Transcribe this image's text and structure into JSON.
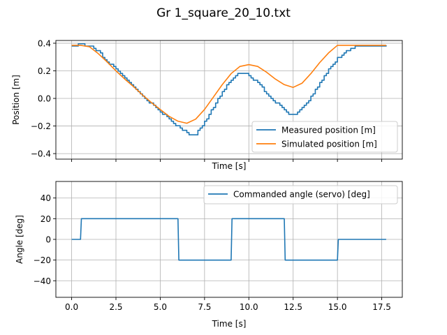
{
  "figure": {
    "title": "Gr 1_square_20_10.txt"
  },
  "chart_data": [
    {
      "type": "line",
      "xlabel": "Time [s]",
      "ylabel": "Position [m]",
      "xlim": [
        -0.89,
        18.66
      ],
      "ylim": [
        -0.44,
        0.42
      ],
      "xticks": [
        0,
        2.5,
        5,
        7.5,
        10,
        12.5,
        15,
        17.5
      ],
      "yticks": [
        -0.4,
        -0.2,
        0.0,
        0.2,
        0.4
      ],
      "ytick_labels": [
        "−0.4",
        "−0.2",
        "0.0",
        "0.2",
        "0.4"
      ],
      "show_xtick_labels": false,
      "grid": true,
      "legend_position": "bottom-right",
      "series": [
        {
          "name": "Measured position [m]",
          "color": "#1f77b4",
          "step": true,
          "step_size": 0.0165,
          "x": [
            0.0,
            0.5,
            1.0,
            1.5,
            2.0,
            2.5,
            3.0,
            3.5,
            4.0,
            4.5,
            5.0,
            5.5,
            6.0,
            6.5,
            6.75,
            7.0,
            7.5,
            8.0,
            8.5,
            9.0,
            9.5,
            9.75,
            10.0,
            10.5,
            11.0,
            11.5,
            12.0,
            12.25,
            12.5,
            12.75,
            13.0,
            13.5,
            14.0,
            14.5,
            15.0,
            15.5,
            16.0,
            16.5,
            17.0,
            17.75
          ],
          "y": [
            0.385,
            0.39,
            0.385,
            0.34,
            0.27,
            0.21,
            0.145,
            0.08,
            0.02,
            -0.04,
            -0.095,
            -0.15,
            -0.205,
            -0.25,
            -0.27,
            -0.26,
            -0.17,
            -0.06,
            0.05,
            0.14,
            0.185,
            0.185,
            0.165,
            0.11,
            0.04,
            -0.025,
            -0.08,
            -0.11,
            -0.115,
            -0.1,
            -0.07,
            0.01,
            0.11,
            0.21,
            0.29,
            0.345,
            0.375,
            0.385,
            0.385,
            0.385
          ]
        },
        {
          "name": "Simulated position [m]",
          "color": "#ff7f0e",
          "step": false,
          "x": [
            0.0,
            0.5,
            1.0,
            1.5,
            2.0,
            2.5,
            3.0,
            3.5,
            4.0,
            4.5,
            5.0,
            5.5,
            6.0,
            6.5,
            7.0,
            7.5,
            8.0,
            8.5,
            9.0,
            9.5,
            10.0,
            10.5,
            11.0,
            11.5,
            12.0,
            12.5,
            13.0,
            13.5,
            14.0,
            14.5,
            15.0,
            15.5,
            16.0,
            16.5,
            17.0,
            17.75
          ],
          "y": [
            0.385,
            0.385,
            0.375,
            0.325,
            0.265,
            0.2,
            0.14,
            0.085,
            0.025,
            -0.03,
            -0.08,
            -0.13,
            -0.165,
            -0.18,
            -0.15,
            -0.08,
            0.01,
            0.1,
            0.18,
            0.232,
            0.245,
            0.232,
            0.19,
            0.14,
            0.1,
            0.08,
            0.11,
            0.18,
            0.26,
            0.33,
            0.385,
            0.385,
            0.385,
            0.385,
            0.385,
            0.385
          ]
        }
      ]
    },
    {
      "type": "line",
      "xlabel": "Time [s]",
      "ylabel": "Angle [deg]",
      "xlim": [
        -0.89,
        18.66
      ],
      "ylim": [
        -56,
        56
      ],
      "xticks": [
        0,
        2.5,
        5,
        7.5,
        10,
        12.5,
        15,
        17.5
      ],
      "xtick_labels": [
        "0.0",
        "2.5",
        "5.0",
        "7.5",
        "10.0",
        "12.5",
        "15.0",
        "17.5"
      ],
      "yticks": [
        -40,
        -20,
        0,
        20,
        40
      ],
      "ytick_labels": [
        "−40",
        "−20",
        "0",
        "20",
        "40"
      ],
      "show_xtick_labels": true,
      "grid": true,
      "legend_position": "top-right",
      "series": [
        {
          "name": "Commanded angle (servo) [deg]",
          "color": "#1f77b4",
          "step": false,
          "x": [
            0.0,
            0.5,
            0.55,
            6.0,
            6.05,
            9.0,
            9.05,
            12.0,
            12.05,
            15.0,
            15.05,
            17.75
          ],
          "y": [
            0,
            0,
            20,
            20,
            -20,
            -20,
            20,
            20,
            -20,
            -20,
            0,
            0
          ]
        }
      ]
    }
  ]
}
